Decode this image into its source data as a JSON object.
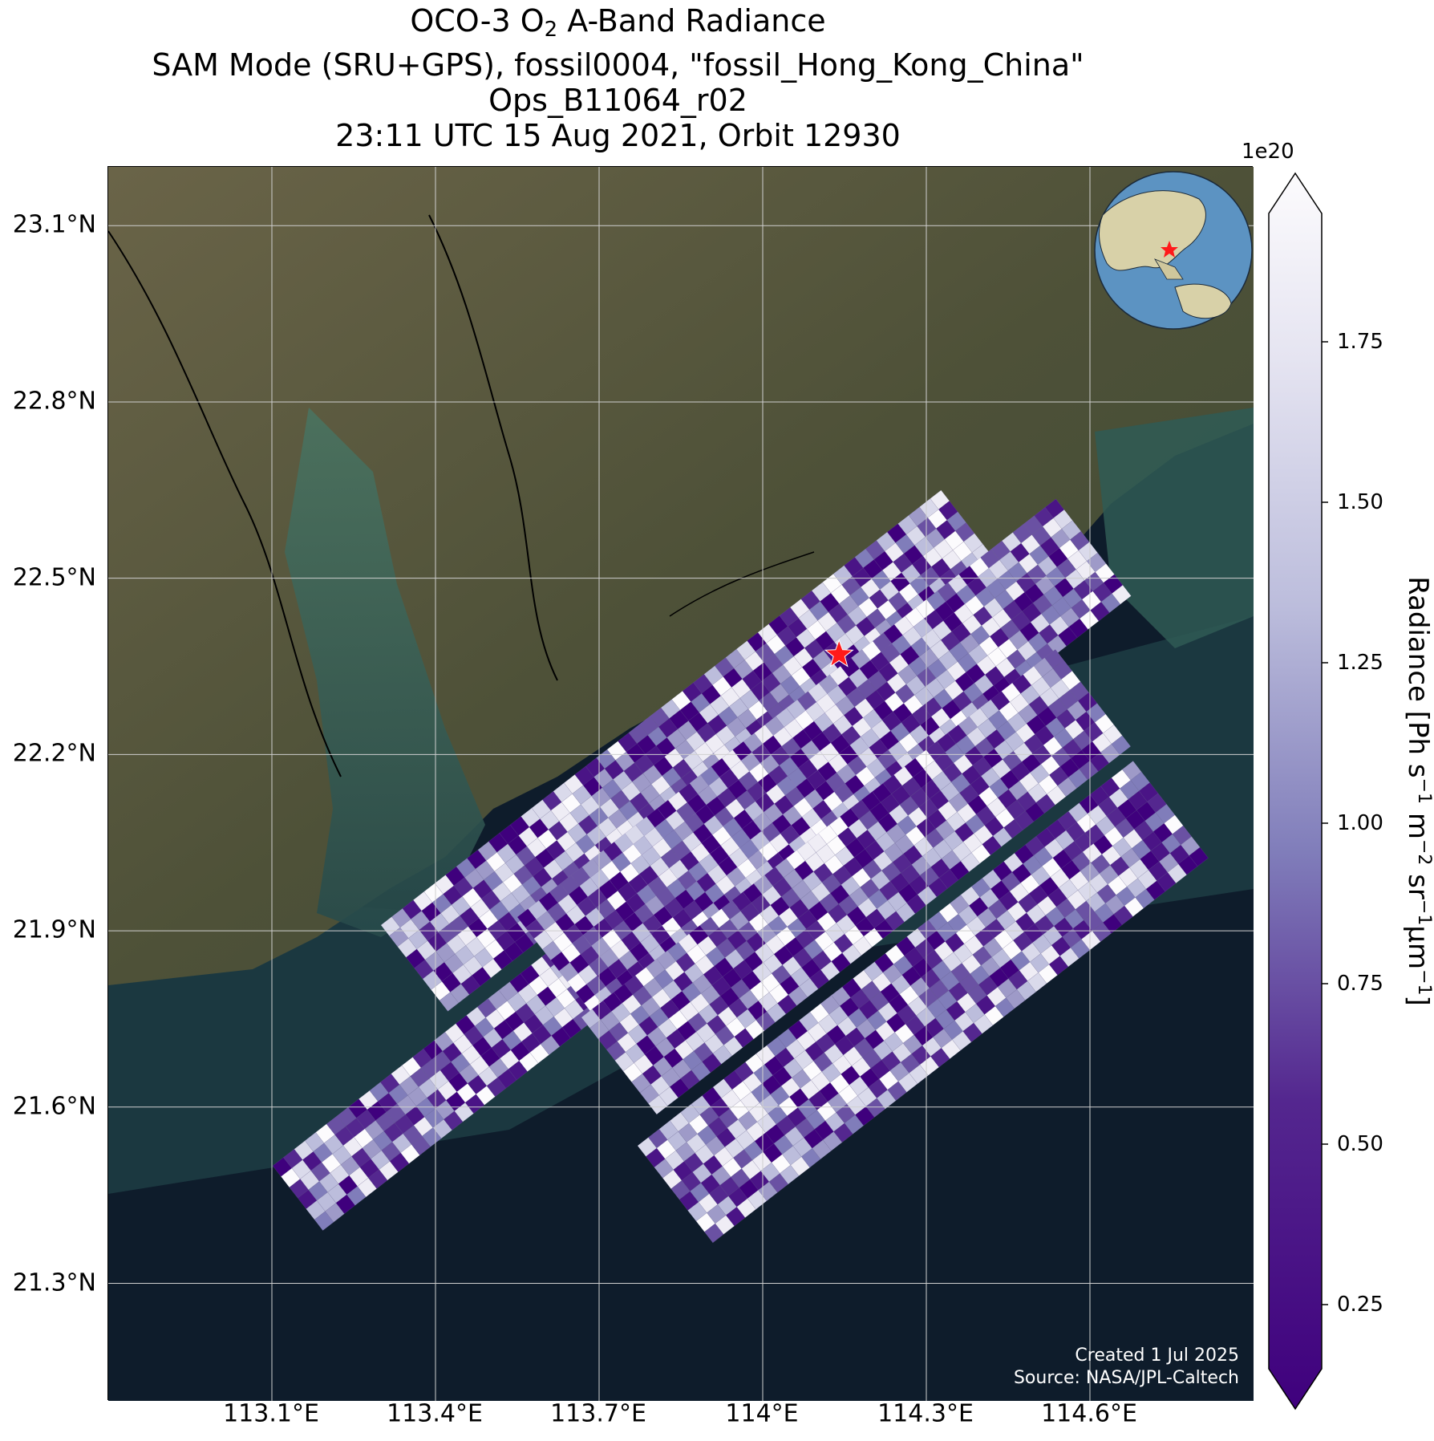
{
  "title": {
    "line1_prefix": "OCO-3 O",
    "line1_sub": "2",
    "line1_suffix": " A-Band Radiance",
    "line2": "SAM Mode (SRU+GPS), fossil0004, \"fossil_Hong_Kong_China\"",
    "line3": "Ops_B11064_r02",
    "line4": "23:11 UTC 15 Aug 2021, Orbit 12930"
  },
  "axes": {
    "lat_ticks": [
      "23.1°N",
      "22.8°N",
      "22.5°N",
      "22.2°N",
      "21.9°N",
      "21.6°N",
      "21.3°N"
    ],
    "lon_ticks": [
      "113.1°E",
      "113.4°E",
      "113.7°E",
      "114°E",
      "114.3°E",
      "114.6°E"
    ],
    "lat_range": [
      21.1,
      23.2
    ],
    "lon_range": [
      112.8,
      114.9
    ],
    "gridlines": true
  },
  "colorbar": {
    "exponent": "1e20",
    "ticks": [
      "0.25",
      "0.50",
      "0.75",
      "1.00",
      "1.25",
      "1.50",
      "1.75"
    ],
    "range": [
      0.15,
      1.95
    ],
    "colormap": "Purples_r",
    "label_parts": {
      "a": "Radiance [Ph s",
      "s1": "−1",
      "b": " m",
      "s2": "−2",
      "c": " sr",
      "s3": "−1",
      "d": "μm",
      "s4": "−1",
      "e": "]"
    }
  },
  "target": {
    "name": "fossil_Hong_Kong_China",
    "lon": 114.14,
    "lat": 22.37,
    "marker_color": "#ff1a1a"
  },
  "credits": {
    "line1": "Created 1 Jul 2025",
    "line2": "Source: NASA/JPL-Caltech"
  },
  "colors": {
    "ocean": "#0e1c2b",
    "land": "#5b5a42",
    "estuary": "#3f6a5c",
    "swath_dark": "#3f0b84",
    "swath_light": "#f4f3fa"
  }
}
